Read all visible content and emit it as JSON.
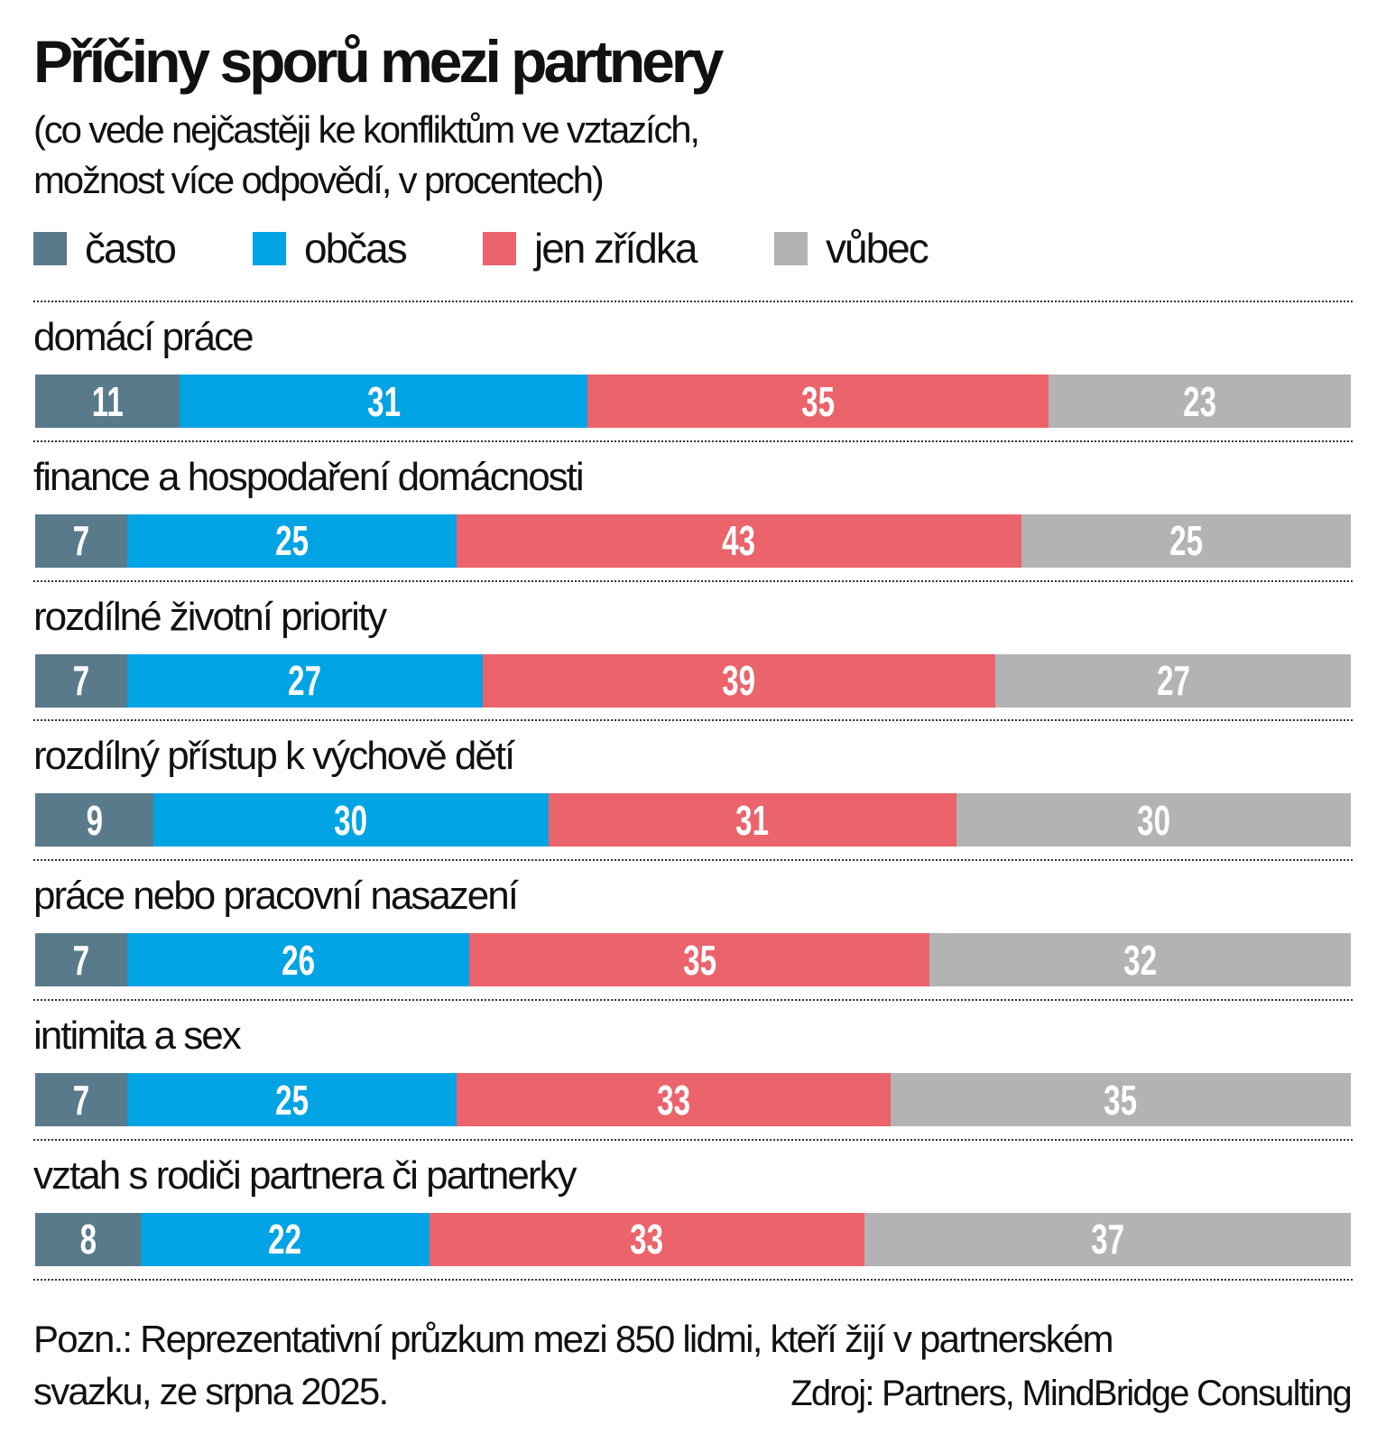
{
  "chart_data": {
    "type": "bar",
    "stacked": true,
    "orientation": "horizontal",
    "title": "Příčiny sporů mezi partnery",
    "subtitle": [
      "(co vede nejčastěji ke konfliktům ve vztazích,",
      "možnost více odpovědí, v procentech)"
    ],
    "categories": [
      "domácí práce",
      "finance a hospodaření domácnosti",
      "rozdílné životní priority",
      "rozdílný přístup k výchově dětí",
      "práce nebo pracovní nasazení",
      "intimita a sex",
      "vztah s rodiči partnera či partnerky"
    ],
    "series": [
      {
        "name": "často",
        "color": "#587a8a",
        "values": [
          11,
          7,
          7,
          9,
          7,
          7,
          8
        ]
      },
      {
        "name": "občas",
        "color": "#00a3e3",
        "values": [
          31,
          25,
          27,
          30,
          26,
          25,
          22
        ]
      },
      {
        "name": "jen zřídka",
        "color": "#eb636b",
        "values": [
          35,
          43,
          39,
          31,
          35,
          33,
          33
        ]
      },
      {
        "name": "vůbec",
        "color": "#b3b3b3",
        "values": [
          23,
          25,
          27,
          30,
          32,
          35,
          37
        ]
      }
    ],
    "xlim": [
      0,
      100
    ],
    "legend_position": "top-left",
    "grid": false,
    "note": [
      "Pozn.: Reprezentativní průzkum mezi 850 lidmi, kteří žijí v partnerském",
      "svazku, ze srpna 2025."
    ],
    "source": "Zdroj: Partners, MindBridge Consulting"
  }
}
